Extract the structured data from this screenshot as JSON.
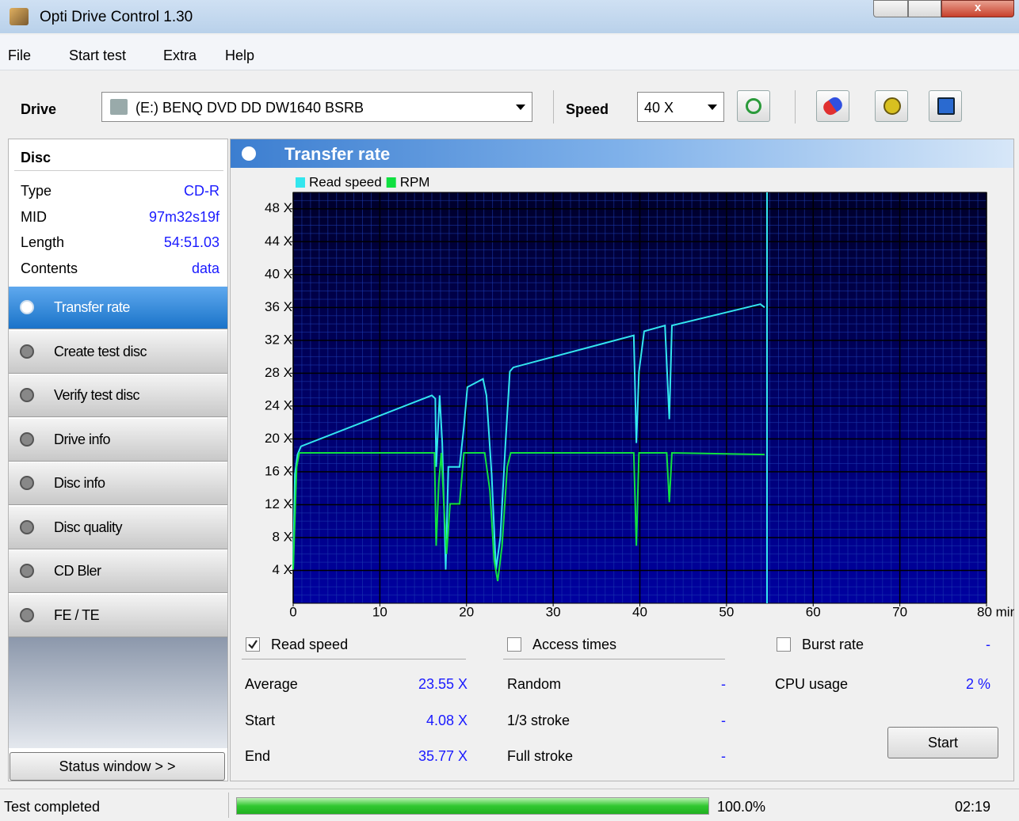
{
  "window": {
    "title": "Opti Drive Control 1.30"
  },
  "menu": [
    "File",
    "Start test",
    "Extra",
    "Help"
  ],
  "toolbar": {
    "drive_label": "Drive",
    "drive": "(E:)  BENQ DVD DD DW1640 BSRB",
    "speed_label": "Speed",
    "speed": "40 X"
  },
  "disc": {
    "title": "Disc",
    "rows": [
      [
        "Type",
        "CD-R"
      ],
      [
        "MID",
        "97m32s19f"
      ],
      [
        "Length",
        "54:51.03"
      ],
      [
        "Contents",
        "data"
      ]
    ]
  },
  "nav": [
    "Transfer rate",
    "Create test disc",
    "Verify test disc",
    "Drive info",
    "Disc info",
    "Disc quality",
    "CD Bler",
    "FE / TE"
  ],
  "nav_selected": 0,
  "status_window_button": "Status window > >",
  "panel": {
    "title": "Transfer rate"
  },
  "chart_data": {
    "type": "line",
    "grid": true,
    "xlim": [
      0,
      80
    ],
    "xticks": [
      0,
      10,
      20,
      30,
      40,
      50,
      60,
      70,
      {
        "value": 80,
        "label": "80 min"
      }
    ],
    "ylim": [
      0,
      50
    ],
    "yticks": [
      {
        "value": 4,
        "label": "4 X"
      },
      {
        "value": 8,
        "label": "8 X"
      },
      {
        "value": 12,
        "label": "12 X"
      },
      {
        "value": 16,
        "label": "16 X"
      },
      {
        "value": 20,
        "label": "20 X"
      },
      {
        "value": 24,
        "label": "24 X"
      },
      {
        "value": 28,
        "label": "28 X"
      },
      {
        "value": 32,
        "label": "32 X"
      },
      {
        "value": 36,
        "label": "36 X"
      },
      {
        "value": 40,
        "label": "40 X"
      },
      {
        "value": 44,
        "label": "44 X"
      },
      {
        "value": 48,
        "label": "48 X"
      }
    ],
    "series": [
      {
        "name": "Read speed",
        "color": "#33e6ee",
        "x": [
          0,
          0.2,
          0.5,
          0.9,
          16.0,
          16.4,
          16.5,
          16.9,
          17.2,
          17.6,
          17.9,
          19.2,
          19.7,
          20.1,
          21.9,
          22.3,
          22.9,
          23.4,
          23.9,
          24.5,
          25.0,
          25.4,
          39.3,
          39.6,
          39.9,
          40.5,
          42.9,
          43.4,
          43.7,
          53.9,
          54.4
        ],
        "values": [
          4.1,
          15.7,
          18.1,
          19.1,
          25.3,
          24.9,
          16.6,
          25.3,
          19.5,
          4.1,
          16.6,
          16.6,
          21.5,
          26.3,
          27.3,
          25.3,
          15.7,
          4.1,
          8.0,
          19.5,
          28.2,
          28.7,
          32.6,
          19.5,
          28.2,
          33.1,
          33.8,
          22.4,
          33.8,
          36.4,
          36.0
        ]
      },
      {
        "name": "RPM",
        "color": "#10e040",
        "x": [
          0,
          0.4,
          0.7,
          16.3,
          16.5,
          16.8,
          17.1,
          17.4,
          17.7,
          18.1,
          19.2,
          19.7,
          22.1,
          22.7,
          23.2,
          23.6,
          24.1,
          24.7,
          25.1,
          39.3,
          39.6,
          39.9,
          43.1,
          43.4,
          43.7,
          54.4
        ],
        "values": [
          4.1,
          16.6,
          18.3,
          18.3,
          7.0,
          14.7,
          18.3,
          11.8,
          6.0,
          12.1,
          12.1,
          18.3,
          18.3,
          13.7,
          5.1,
          2.7,
          7.0,
          16.6,
          18.3,
          18.3,
          7.0,
          18.3,
          18.3,
          12.3,
          18.3,
          18.1
        ]
      }
    ]
  },
  "results": {
    "read_speed": {
      "label": "Read speed",
      "checked": true,
      "rows": [
        [
          "Average",
          "23.55 X"
        ],
        [
          "Start",
          "4.08 X"
        ],
        [
          "End",
          "35.77 X"
        ]
      ]
    },
    "access_times": {
      "label": "Access times",
      "checked": false,
      "rows": [
        [
          "Random",
          "-"
        ],
        [
          "1/3 stroke",
          "-"
        ],
        [
          "Full stroke",
          "-"
        ]
      ]
    },
    "burst_rate": {
      "label": "Burst rate",
      "checked": false,
      "value": "-",
      "rows": [
        [
          "CPU usage",
          "2 %"
        ]
      ]
    },
    "start_button": "Start"
  },
  "status": {
    "text": "Test completed",
    "progress": 100,
    "progress_label": "100.0%",
    "time": "02:19"
  }
}
